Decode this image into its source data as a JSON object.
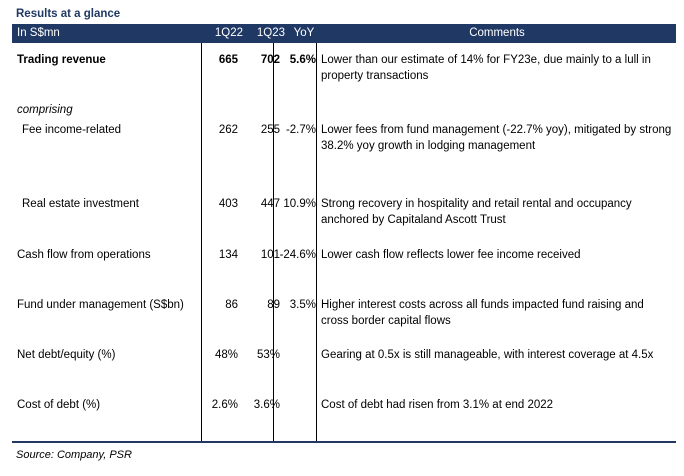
{
  "title": "Results at a glance",
  "header": {
    "label": "In S$mn",
    "col_1q22": "1Q22",
    "col_1q23": "1Q23",
    "col_yoy": "YoY",
    "col_comments": "Comments"
  },
  "colors": {
    "header_bg": "#1f3864",
    "title_text": "#1f3864"
  },
  "rows": [
    {
      "label": "Trading revenue",
      "q1q22": "665",
      "q1q23": "702",
      "yoy": "5.6%",
      "comment": "Lower than our estimate of 14% for FY23e, due mainly to a lull in property transactions"
    },
    {
      "label": "comprising"
    },
    {
      "label": "Fee income-related",
      "q1q22": "262",
      "q1q23": "255",
      "yoy": "-2.7%",
      "comment": "Lower fees from fund management (-22.7% yoy), mitigated by strong 38.2% yoy growth in lodging management"
    },
    {
      "label": "Real estate investment",
      "q1q22": "403",
      "q1q23": "447",
      "yoy": "10.9%",
      "comment": "Strong recovery in hospitality and retail rental and occupancy anchored by Capitaland Ascott Trust"
    },
    {
      "label": "Cash flow from operations",
      "q1q22": "134",
      "q1q23": "101",
      "yoy": "-24.6%",
      "comment": "Lower cash flow reflects lower fee income received"
    },
    {
      "label": "Fund under management (S$bn)",
      "q1q22": "86",
      "q1q23": "89",
      "yoy": "3.5%",
      "comment": "Higher interest costs across all funds impacted fund raising and cross border capital flows"
    },
    {
      "label": "Net debt/equity (%)",
      "q1q22": "48%",
      "q1q23": "53%",
      "yoy": "",
      "comment": "Gearing at 0.5x is still manageable, with interest coverage at 4.5x"
    },
    {
      "label": "Cost of debt (%)",
      "q1q22": "2.6%",
      "q1q23": "3.6%",
      "yoy": "",
      "comment": "Cost of debt had risen from 3.1% at end 2022"
    }
  ],
  "source": "Source: Company, PSR"
}
